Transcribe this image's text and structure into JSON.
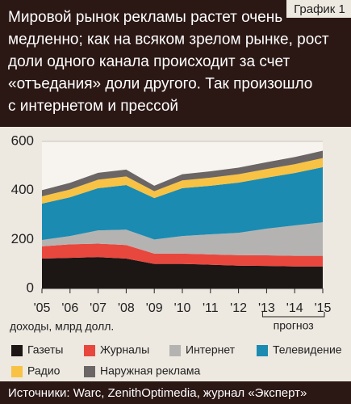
{
  "chart_data": {
    "type": "stacked_area",
    "badge": "График 1",
    "title_lines": [
      "Мировой рынок рекламы растет очень",
      "медленно; как на всяком зрелом рынке, рост",
      "доли одного канала происходит за счет",
      "«отъедания» доли другого. Так произошло",
      "с интернетом и прессой"
    ],
    "y_label": "доходы, млрд долл.",
    "forecast_label": "прогноз",
    "source": "Источники: Warc, ZenithOptimedia, журнал «Эксперт»",
    "categories": [
      "'05",
      "'06",
      "'07",
      "'08",
      "'09",
      "'10",
      "'11",
      "'12",
      "'13",
      "'14",
      "'15"
    ],
    "series": [
      {
        "name": "Газеты",
        "color": "#1c1615",
        "values": [
          122,
          125,
          128,
          122,
          100,
          100,
          97,
          93,
          92,
          90,
          90
        ]
      },
      {
        "name": "Журналы",
        "color": "#e8473e",
        "values": [
          50,
          55,
          55,
          55,
          42,
          42,
          42,
          43,
          43,
          43,
          43
        ]
      },
      {
        "name": "Интернет",
        "color": "#b5b3b1",
        "values": [
          26,
          34,
          54,
          63,
          58,
          72,
          82,
          91,
          109,
          124,
          137
        ]
      },
      {
        "name": "Телевидение",
        "color": "#1b8bb2",
        "values": [
          148,
          158,
          172,
          182,
          169,
          195,
          198,
          205,
          208,
          214,
          225
        ]
      },
      {
        "name": "Радио",
        "color": "#f8c244",
        "values": [
          30,
          32,
          35,
          35,
          28,
          32,
          33,
          34,
          35,
          36,
          37
        ]
      },
      {
        "name": "Наружная реклама",
        "color": "#6b6665",
        "values": [
          25,
          27,
          28,
          28,
          22,
          25,
          26,
          27,
          28,
          29,
          30
        ]
      }
    ],
    "ylim": [
      0,
      600
    ],
    "yticks": [
      0,
      200,
      400,
      600
    ],
    "grid": true
  }
}
